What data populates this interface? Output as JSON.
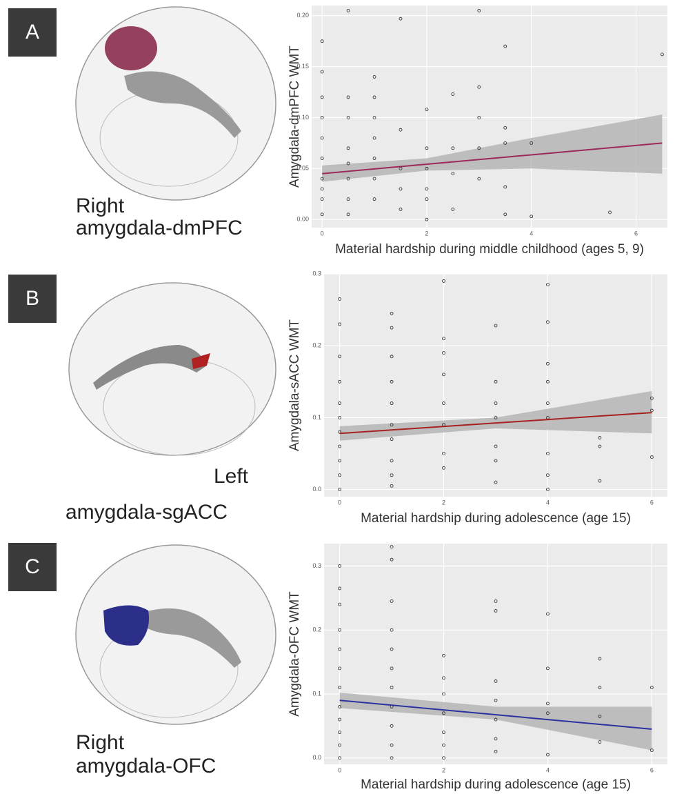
{
  "panels": [
    {
      "letter": "A",
      "label_lines": [
        "Right",
        "amygdala-dmPFC"
      ]
    },
    {
      "letter": "B",
      "label_lines": [
        "Left",
        "amygdala-sgACC"
      ]
    },
    {
      "letter": "C",
      "label_lines": [
        "Right",
        "amygdala-OFC"
      ]
    }
  ],
  "chart_data": [
    {
      "type": "scatter",
      "ylabel": "Amygdala-dmPFC WMT",
      "xlabel": "Material hardship during middle childhood (ages 5, 9)",
      "xlim": [
        -0.2,
        6.6
      ],
      "xticks": [
        0,
        2,
        4,
        6
      ],
      "ylim": [
        -0.008,
        0.21
      ],
      "yticks": [
        {
          "value": 0,
          "label": "0.00"
        },
        {
          "value": 0.05,
          "label": "0.05"
        },
        {
          "value": 0.1,
          "label": "0.10"
        },
        {
          "value": 0.15,
          "label": "0.15"
        },
        {
          "value": 0.2,
          "label": "0.20"
        }
      ],
      "grid": true,
      "point_color": "#222222",
      "x": [
        0,
        0,
        0,
        0,
        0,
        0,
        0,
        0,
        0,
        0,
        0.5,
        0.5,
        0.5,
        0.5,
        0.5,
        0.5,
        0.5,
        0.5,
        1,
        1,
        1,
        1,
        1,
        1,
        1,
        1.5,
        1.5,
        1.5,
        1.5,
        1.5,
        2,
        2,
        2,
        2,
        2,
        2,
        2.5,
        2.5,
        2.5,
        2.5,
        3,
        3,
        3,
        3,
        3,
        3.5,
        3.5,
        3.5,
        3.5,
        3.5,
        4,
        4,
        5.5,
        6.5
      ],
      "y": [
        0.175,
        0.145,
        0.12,
        0.1,
        0.08,
        0.06,
        0.04,
        0.03,
        0.02,
        0.005,
        0.205,
        0.12,
        0.1,
        0.07,
        0.055,
        0.04,
        0.02,
        0.005,
        0.14,
        0.12,
        0.1,
        0.08,
        0.06,
        0.04,
        0.02,
        0.197,
        0.088,
        0.05,
        0.03,
        0.01,
        0.108,
        0.07,
        0.05,
        0.03,
        0.02,
        0.0,
        0.123,
        0.07,
        0.045,
        0.01,
        0.205,
        0.13,
        0.1,
        0.07,
        0.04,
        0.17,
        0.09,
        0.075,
        0.032,
        0.005,
        0.075,
        0.003,
        0.007,
        0.162
      ],
      "fit": {
        "color": "#9b2a5a",
        "x": [
          0,
          6.5
        ],
        "values": [
          0.045,
          0.075
        ]
      },
      "band": {
        "color": "#b5b5b5",
        "x": [
          0,
          2,
          4,
          6.5
        ],
        "lower": [
          0.037,
          0.048,
          0.05,
          0.045
        ],
        "upper": [
          0.053,
          0.06,
          0.08,
          0.103
        ]
      }
    },
    {
      "type": "scatter",
      "ylabel": "Amygdala-sACC WMT",
      "xlabel": "Material hardship during adolescence (age 15)",
      "xlim": [
        -0.3,
        6.3
      ],
      "xticks": [
        0,
        2,
        4,
        6
      ],
      "ylim": [
        -0.01,
        0.3
      ],
      "yticks": [
        {
          "value": 0,
          "label": "0.0"
        },
        {
          "value": 0.1,
          "label": "0.1"
        },
        {
          "value": 0.2,
          "label": "0.2"
        },
        {
          "value": 0.3,
          "label": "0.3"
        }
      ],
      "grid": true,
      "point_color": "#222222",
      "x": [
        0,
        0,
        0,
        0,
        0,
        0,
        0,
        0,
        0,
        0,
        0,
        1,
        1,
        1,
        1,
        1,
        1,
        1,
        1,
        1,
        1,
        2,
        2,
        2,
        2,
        2,
        2,
        2,
        2,
        3,
        3,
        3,
        3,
        3,
        3,
        3,
        4,
        4,
        4,
        4,
        4,
        4,
        4,
        4,
        4,
        5,
        5,
        5,
        6,
        6,
        6
      ],
      "y": [
        0.265,
        0.23,
        0.185,
        0.15,
        0.12,
        0.1,
        0.08,
        0.06,
        0.04,
        0.02,
        0.0,
        0.245,
        0.225,
        0.185,
        0.15,
        0.12,
        0.09,
        0.07,
        0.04,
        0.02,
        0.005,
        0.29,
        0.21,
        0.19,
        0.16,
        0.12,
        0.09,
        0.05,
        0.03,
        0.228,
        0.15,
        0.12,
        0.1,
        0.06,
        0.04,
        0.01,
        0.285,
        0.233,
        0.175,
        0.15,
        0.12,
        0.1,
        0.05,
        0.02,
        0.0,
        0.072,
        0.06,
        0.012,
        0.127,
        0.11,
        0.045
      ],
      "fit": {
        "color": "#a82020",
        "x": [
          0,
          6
        ],
        "values": [
          0.078,
          0.107
        ]
      },
      "band": {
        "color": "#b5b5b5",
        "x": [
          0,
          3,
          6
        ],
        "lower": [
          0.068,
          0.085,
          0.078
        ],
        "upper": [
          0.088,
          0.1,
          0.137
        ]
      }
    },
    {
      "type": "scatter",
      "ylabel": "Amygdala-OFC WMT",
      "xlabel": "Material hardship during adolescence (age 15)",
      "xlim": [
        -0.3,
        6.3
      ],
      "xticks": [
        0,
        2,
        4,
        6
      ],
      "ylim": [
        -0.01,
        0.335
      ],
      "yticks": [
        {
          "value": 0,
          "label": "0.0"
        },
        {
          "value": 0.1,
          "label": "0.1"
        },
        {
          "value": 0.2,
          "label": "0.2"
        },
        {
          "value": 0.3,
          "label": "0.3"
        }
      ],
      "grid": true,
      "point_color": "#222222",
      "x": [
        0,
        0,
        0,
        0,
        0,
        0,
        0,
        0,
        0,
        0,
        0,
        0,
        1,
        1,
        1,
        1,
        1,
        1,
        1,
        1,
        1,
        1,
        1,
        2,
        2,
        2,
        2,
        2,
        2,
        2,
        3,
        3,
        3,
        3,
        3,
        3,
        3,
        4,
        4,
        4,
        4,
        4,
        5,
        5,
        5,
        5,
        6,
        6
      ],
      "y": [
        0.3,
        0.265,
        0.24,
        0.2,
        0.17,
        0.14,
        0.11,
        0.08,
        0.06,
        0.04,
        0.02,
        0.0,
        0.33,
        0.31,
        0.245,
        0.2,
        0.17,
        0.14,
        0.11,
        0.08,
        0.05,
        0.02,
        0.0,
        0.16,
        0.125,
        0.1,
        0.07,
        0.04,
        0.02,
        0.0,
        0.245,
        0.23,
        0.12,
        0.09,
        0.06,
        0.03,
        0.01,
        0.225,
        0.14,
        0.085,
        0.07,
        0.005,
        0.155,
        0.11,
        0.065,
        0.025,
        0.11,
        0.012
      ],
      "fit": {
        "color": "#2a32a0",
        "x": [
          0,
          6
        ],
        "values": [
          0.09,
          0.045
        ]
      },
      "band": {
        "color": "#b5b5b5",
        "x": [
          0,
          3,
          6
        ],
        "lower": [
          0.078,
          0.06,
          0.012
        ],
        "upper": [
          0.102,
          0.08,
          0.08
        ]
      }
    }
  ]
}
